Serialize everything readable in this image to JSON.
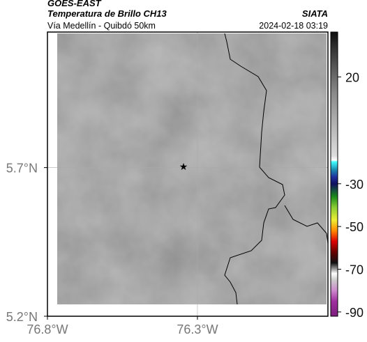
{
  "header": {
    "source": "GOES-EAST",
    "title": "Temperatura de Brillo CH13",
    "agency": "SIATA",
    "subtitle": "Vía Medellín - Quibdó 50km",
    "datetime": "2024-02-18 03:19"
  },
  "chart_data": {
    "type": "map",
    "xlim": [
      -76.8,
      -75.865
    ],
    "ylim": [
      5.2,
      6.156
    ],
    "xticks": [
      {
        "value": -76.8,
        "label": "76.8°W"
      },
      {
        "value": -76.3,
        "label": "76.3°W"
      }
    ],
    "yticks": [
      {
        "value": 5.2,
        "label": "5.2°N"
      },
      {
        "value": 5.7,
        "label": "5.7°N"
      }
    ],
    "grid": true,
    "colorbar": {
      "lim": [
        -92,
        41
      ],
      "ticks": [
        20,
        -30,
        -50,
        -70,
        -90
      ],
      "stops": [
        {
          "value": 40,
          "color": "#111111"
        },
        {
          "value": 33,
          "color": "#333333"
        },
        {
          "value": 13,
          "color": "#888888"
        },
        {
          "value": -17,
          "color": "#dddddd"
        },
        {
          "value": -19,
          "color": "#ffffff"
        },
        {
          "value": -19.7,
          "color": "#44ffff"
        },
        {
          "value": -23.5,
          "color": "#1a8ab0"
        },
        {
          "value": -26.8,
          "color": "#2030a0"
        },
        {
          "value": -30,
          "color": "#101060"
        },
        {
          "value": -36,
          "color": "#1a8a1a"
        },
        {
          "value": -41,
          "color": "#88cc33"
        },
        {
          "value": -47,
          "color": "#eeee33"
        },
        {
          "value": -52,
          "color": "#ff8800"
        },
        {
          "value": -57,
          "color": "#dd0000"
        },
        {
          "value": -62,
          "color": "#660000"
        },
        {
          "value": -67,
          "color": "#111111"
        },
        {
          "value": -72,
          "color": "#ffffff"
        },
        {
          "value": -75,
          "color": "#cccccc"
        },
        {
          "value": -80,
          "color": "#cc88cc"
        },
        {
          "value": -85,
          "color": "#a030a0"
        },
        {
          "value": -91,
          "color": "#802080"
        }
      ]
    }
  }
}
